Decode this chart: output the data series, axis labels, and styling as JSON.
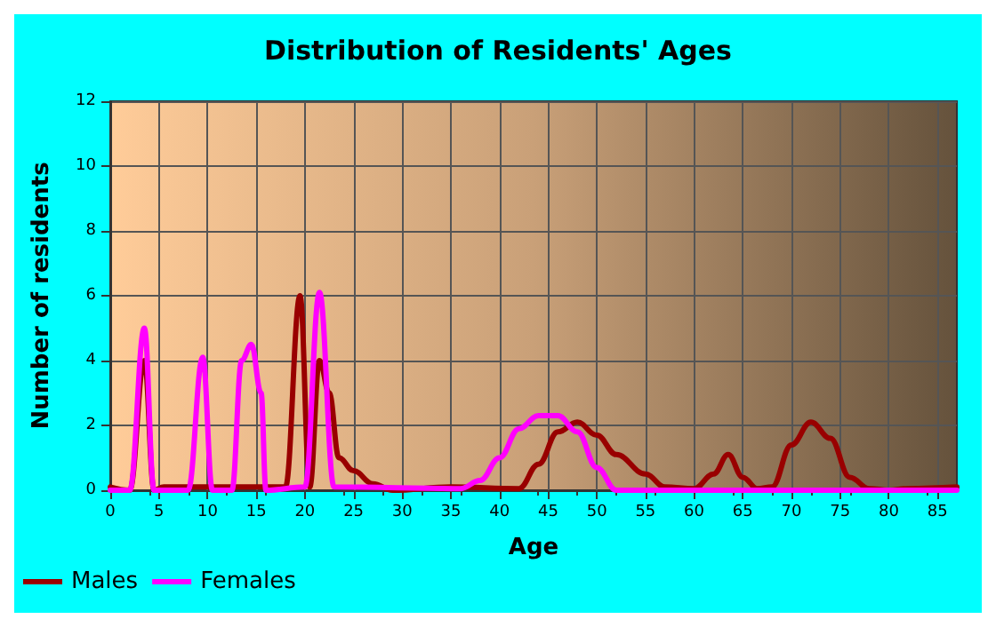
{
  "chart_data": {
    "type": "line",
    "title": "Distribution of Residents' Ages",
    "xlabel": "Age",
    "ylabel": "Number of residents",
    "xlim": [
      0,
      87
    ],
    "xticks": [
      0,
      5,
      10,
      15,
      20,
      25,
      30,
      35,
      40,
      45,
      50,
      55,
      60,
      65,
      70,
      75,
      80,
      85
    ],
    "ylim": [
      0,
      12
    ],
    "yticks": [
      0,
      2,
      4,
      6,
      8,
      10,
      12
    ],
    "grid": true,
    "legend": "bottom",
    "marker": "none",
    "line_style": "solid",
    "series": [
      {
        "name": "Males",
        "color": "#990000",
        "x": [
          0,
          2,
          3.5,
          4.5,
          5.5,
          18,
          19.5,
          20.5,
          21.5,
          22.5,
          23.5,
          25,
          27,
          29,
          35,
          42,
          44,
          46,
          48,
          50,
          52,
          55,
          57,
          60,
          62,
          63.5,
          65,
          66.5,
          68,
          70,
          72,
          74,
          76,
          78,
          80,
          82,
          87
        ],
        "values": [
          0.1,
          0,
          4,
          0,
          0.1,
          0.1,
          6,
          0.1,
          4,
          3,
          1,
          0.6,
          0.2,
          0,
          0.1,
          0.05,
          0.8,
          1.8,
          2.1,
          1.7,
          1.1,
          0.5,
          0.1,
          0.05,
          0.5,
          1.1,
          0.4,
          0.05,
          0.1,
          1.4,
          2.1,
          1.6,
          0.4,
          0.05,
          0,
          0.05,
          0.1
        ]
      },
      {
        "name": "Females",
        "color": "#ff00ff",
        "x": [
          0,
          2,
          3.5,
          4.5,
          8,
          9.5,
          10.5,
          12.5,
          13.5,
          14.5,
          15.5,
          16,
          20,
          21.5,
          23,
          36,
          38,
          40,
          42,
          44,
          46,
          48,
          50,
          52,
          87
        ],
        "values": [
          0,
          0,
          5,
          0,
          0,
          4.1,
          0,
          0,
          4,
          4.5,
          3,
          0,
          0.1,
          6.1,
          0.1,
          0.05,
          0.3,
          1,
          1.9,
          2.3,
          2.3,
          1.8,
          0.7,
          0,
          0
        ]
      }
    ]
  }
}
